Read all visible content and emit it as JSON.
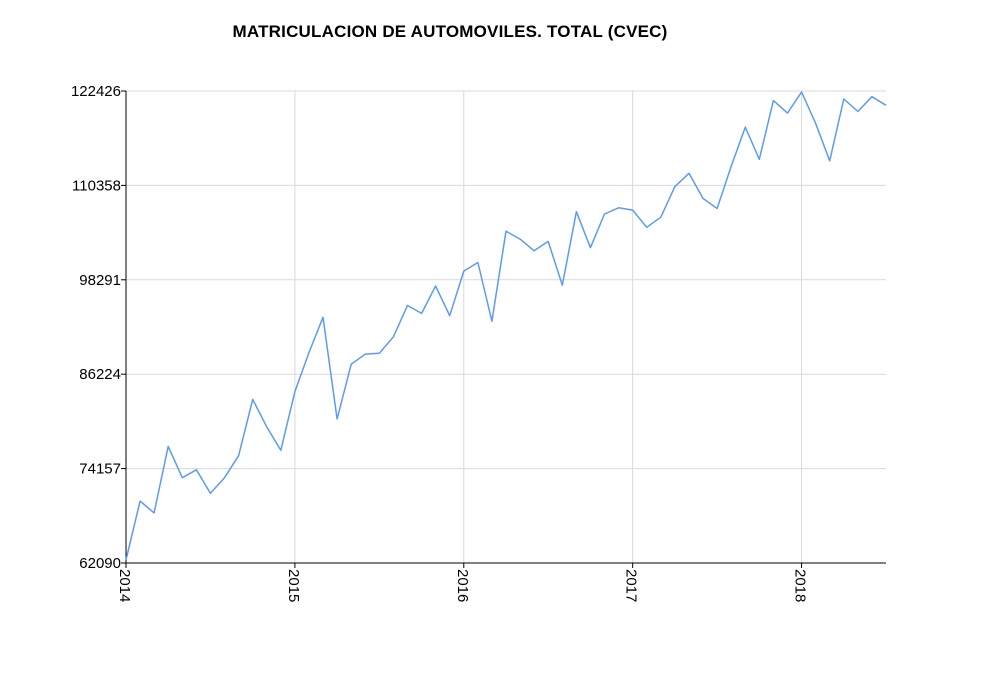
{
  "chart_data": {
    "type": "line",
    "title": "MATRICULACION DE AUTOMOVILES. TOTAL (CVEC)",
    "xlabel": "",
    "ylabel": "",
    "grid": true,
    "ylim": [
      62090,
      122426
    ],
    "yticks": [
      "62090",
      "74157",
      "86224",
      "98291",
      "110358",
      "122426"
    ],
    "xlim": [
      "2014-01",
      "2018-07"
    ],
    "xticks": [
      {
        "label": "2014",
        "at": "2014-01"
      },
      {
        "label": "2015",
        "at": "2015-01"
      },
      {
        "label": "2016",
        "at": "2016-01"
      },
      {
        "label": "2017",
        "at": "2017-01"
      },
      {
        "label": "2018",
        "at": "2018-01"
      }
    ],
    "series": [
      {
        "color": "#5b9bf2",
        "x": [
          "2014-01",
          "2014-02",
          "2014-03",
          "2014-04",
          "2014-05",
          "2014-06",
          "2014-07",
          "2014-08",
          "2014-09",
          "2014-10",
          "2014-11",
          "2014-12",
          "2015-01",
          "2015-02",
          "2015-03",
          "2015-04",
          "2015-05",
          "2015-06",
          "2015-07",
          "2015-08",
          "2015-09",
          "2015-10",
          "2015-11",
          "2015-12",
          "2016-01",
          "2016-02",
          "2016-03",
          "2016-04",
          "2016-05",
          "2016-06",
          "2016-07",
          "2016-08",
          "2016-09",
          "2016-10",
          "2016-11",
          "2016-12",
          "2017-01",
          "2017-02",
          "2017-03",
          "2017-04",
          "2017-05",
          "2017-06",
          "2017-07",
          "2017-08",
          "2017-09",
          "2017-10",
          "2017-11",
          "2017-12",
          "2018-01",
          "2018-02",
          "2018-03",
          "2018-04",
          "2018-05",
          "2018-06",
          "2018-07"
        ],
        "values": [
          62500,
          70000,
          68500,
          77000,
          73000,
          74000,
          71000,
          73000,
          75800,
          83000,
          79500,
          76500,
          84000,
          89000,
          93500,
          80500,
          87500,
          88800,
          88900,
          91000,
          95000,
          94000,
          97500,
          93700,
          99400,
          100500,
          93000,
          104500,
          103500,
          102000,
          103200,
          97600,
          107000,
          102400,
          106700,
          107500,
          107200,
          105000,
          106300,
          110200,
          111900,
          108700,
          107400,
          112800,
          117800,
          113700,
          121200,
          119600,
          122300,
          118300,
          113500,
          121400,
          119800,
          121700,
          120600
        ]
      }
    ]
  }
}
